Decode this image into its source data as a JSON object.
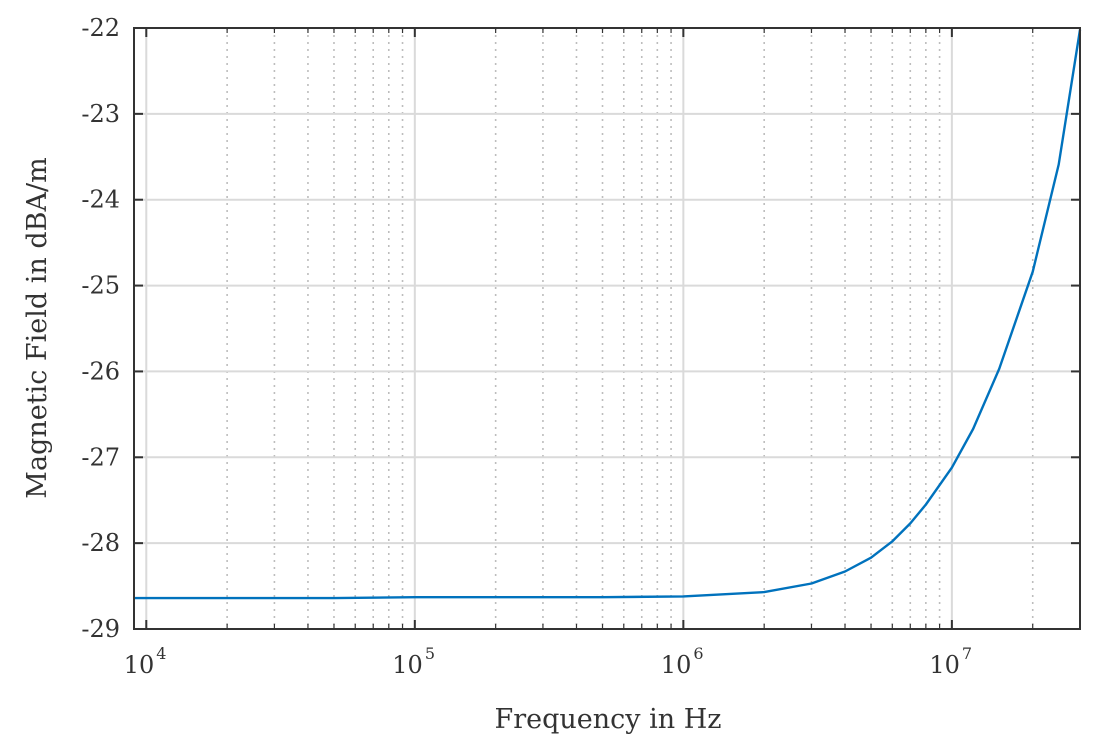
{
  "chart_data": {
    "type": "line",
    "xlabel": "Frequency in Hz",
    "ylabel": "Magnetic Field in dBA/m",
    "x_scale": "log",
    "xlim": [
      9000,
      30000000
    ],
    "ylim": [
      -29,
      -22
    ],
    "x_ticks": [
      {
        "value": 10000,
        "base": "10",
        "exp": "4"
      },
      {
        "value": 100000,
        "base": "10",
        "exp": "5"
      },
      {
        "value": 1000000,
        "base": "10",
        "exp": "6"
      },
      {
        "value": 10000000,
        "base": "10",
        "exp": "7"
      }
    ],
    "y_ticks": [
      {
        "value": -22,
        "label": "-22"
      },
      {
        "value": -23,
        "label": "-23"
      },
      {
        "value": -24,
        "label": "-24"
      },
      {
        "value": -25,
        "label": "-25"
      },
      {
        "value": -26,
        "label": "-26"
      },
      {
        "value": -27,
        "label": "-27"
      },
      {
        "value": -28,
        "label": "-28"
      },
      {
        "value": -29,
        "label": "-29"
      }
    ],
    "grid": true,
    "minor_grid": true,
    "colors": {
      "line": "#0072BD",
      "axes": "#333333",
      "grid": "#DADADA",
      "minor_grid": "#BDBDBD"
    },
    "series": [
      {
        "x": [
          9000,
          20000,
          50000,
          100000,
          200000,
          500000,
          1000000,
          2000000,
          3000000,
          4000000,
          5000000,
          6000000,
          7000000,
          8000000,
          10000000,
          12000000,
          15000000,
          20000000,
          25000000,
          30000000
        ],
        "y": [
          -28.64,
          -28.64,
          -28.64,
          -28.63,
          -28.63,
          -28.63,
          -28.62,
          -28.57,
          -28.47,
          -28.33,
          -28.17,
          -27.98,
          -27.77,
          -27.55,
          -27.12,
          -26.67,
          -25.97,
          -24.84,
          -23.59,
          -22.02
        ]
      }
    ]
  }
}
